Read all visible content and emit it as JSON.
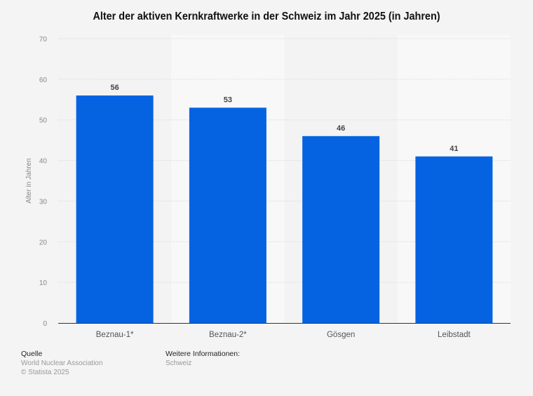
{
  "chart_data": {
    "type": "bar",
    "title": "Alter der aktiven Kernkraftwerke in der Schweiz im Jahr 2025 (in Jahren)",
    "xlabel": "",
    "ylabel": "Alter in Jahren",
    "categories": [
      "Beznau-1*",
      "Beznau-2*",
      "Gösgen",
      "Leibstadt"
    ],
    "values": [
      56,
      53,
      46,
      41
    ],
    "data_labels": [
      "56",
      "53",
      "46",
      "41"
    ],
    "ylim": [
      0,
      70
    ],
    "yticks": [
      0,
      10,
      20,
      30,
      40,
      50,
      60,
      70
    ],
    "grid": true,
    "legend": "none",
    "bar_color": "#0563e2"
  },
  "footer": {
    "source_heading": "Quelle",
    "source": "World Nuclear Association",
    "copyright": "© Statista 2025",
    "info_heading": "Weitere Informationen:",
    "info": "Schweiz"
  }
}
